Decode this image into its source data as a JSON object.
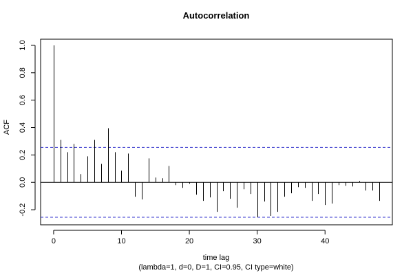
{
  "chart_data": {
    "type": "bar",
    "title": "Autocorrelation",
    "xlabel": "time lag",
    "subtitle": "(lambda=1, d=0, D=1, CI=0.95, CI type=white)",
    "ylabel": "ACF",
    "xlim": [
      -1.92,
      49.92
    ],
    "ylim": [
      -0.31,
      1.045
    ],
    "xticks": [
      0,
      10,
      20,
      30,
      40
    ],
    "yticks": [
      -0.2,
      0.0,
      0.2,
      0.4,
      0.6,
      0.8,
      1.0
    ],
    "ytick_labels": [
      "-0.2",
      "0.0",
      "0.2",
      "0.4",
      "0.6",
      "0.8",
      "1.0"
    ],
    "confidence_bound": 0.255,
    "confidence_color": "#3333cc",
    "grid": false,
    "series": [
      {
        "lags": [
          0,
          1,
          2,
          3,
          4,
          5,
          6,
          7,
          8,
          9,
          10,
          11,
          12,
          13,
          14,
          15,
          16,
          17,
          18,
          19,
          20,
          21,
          22,
          23,
          24,
          25,
          26,
          27,
          28,
          29,
          30,
          31,
          32,
          33,
          34,
          35,
          36,
          37,
          38,
          39,
          40,
          41,
          42,
          43,
          44,
          45,
          46,
          47,
          48
        ],
        "values": [
          1.0,
          0.31,
          0.22,
          0.28,
          0.06,
          0.19,
          0.31,
          0.135,
          0.395,
          0.22,
          0.085,
          0.21,
          -0.105,
          -0.125,
          0.175,
          0.035,
          0.03,
          0.12,
          -0.02,
          -0.04,
          -0.01,
          -0.09,
          -0.135,
          -0.11,
          -0.215,
          -0.065,
          -0.12,
          -0.185,
          -0.05,
          -0.085,
          -0.255,
          -0.14,
          -0.245,
          -0.215,
          -0.105,
          -0.08,
          -0.035,
          -0.04,
          -0.135,
          -0.085,
          -0.165,
          -0.155,
          -0.02,
          -0.025,
          -0.03,
          0.01,
          -0.06,
          -0.06,
          -0.135
        ]
      }
    ]
  }
}
